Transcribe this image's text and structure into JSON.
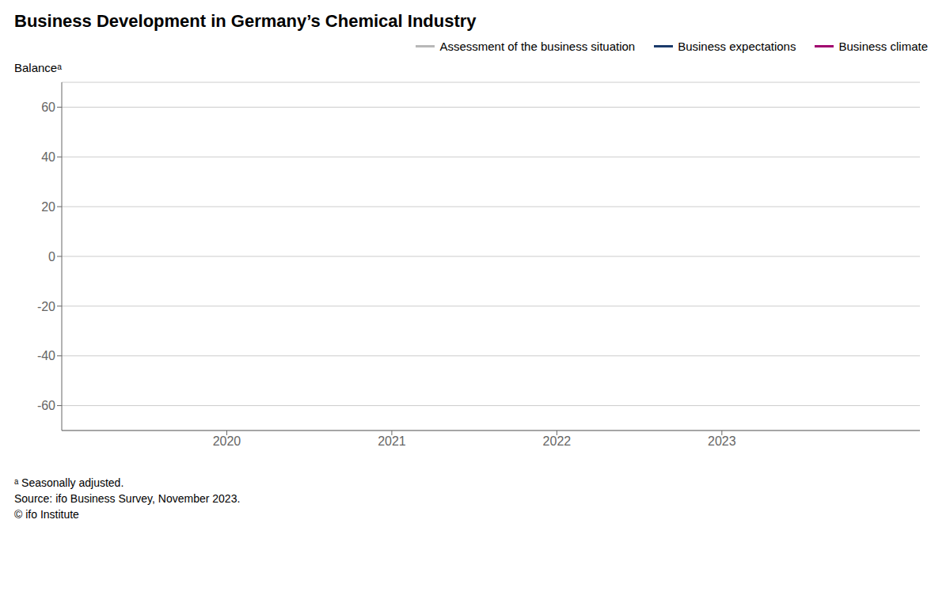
{
  "chart_data": {
    "type": "line",
    "title": "Business Development in Germany’s Chemical Industry",
    "ylabel": "Balanceᵃ",
    "x": [],
    "series": [
      {
        "name": "Assessment of the business situation",
        "color": "#b8b8b8",
        "values": []
      },
      {
        "name": "Business expectations",
        "color": "#1a3a6b",
        "values": []
      },
      {
        "name": "Business climate",
        "color": "#a0006e",
        "values": []
      }
    ],
    "xlim": [
      2019.0,
      2024.2
    ],
    "xticks": [
      2020,
      2021,
      2022,
      2023
    ],
    "ylim": [
      -70,
      70
    ],
    "yticks": [
      -60,
      -40,
      -20,
      0,
      20,
      40,
      60
    ],
    "grid": true,
    "legend": "upper right",
    "annotations": [
      "ᵃ Seasonally adjusted.",
      "Source: ifo Business Survey, November 2023.",
      "© ifo Institute"
    ]
  }
}
